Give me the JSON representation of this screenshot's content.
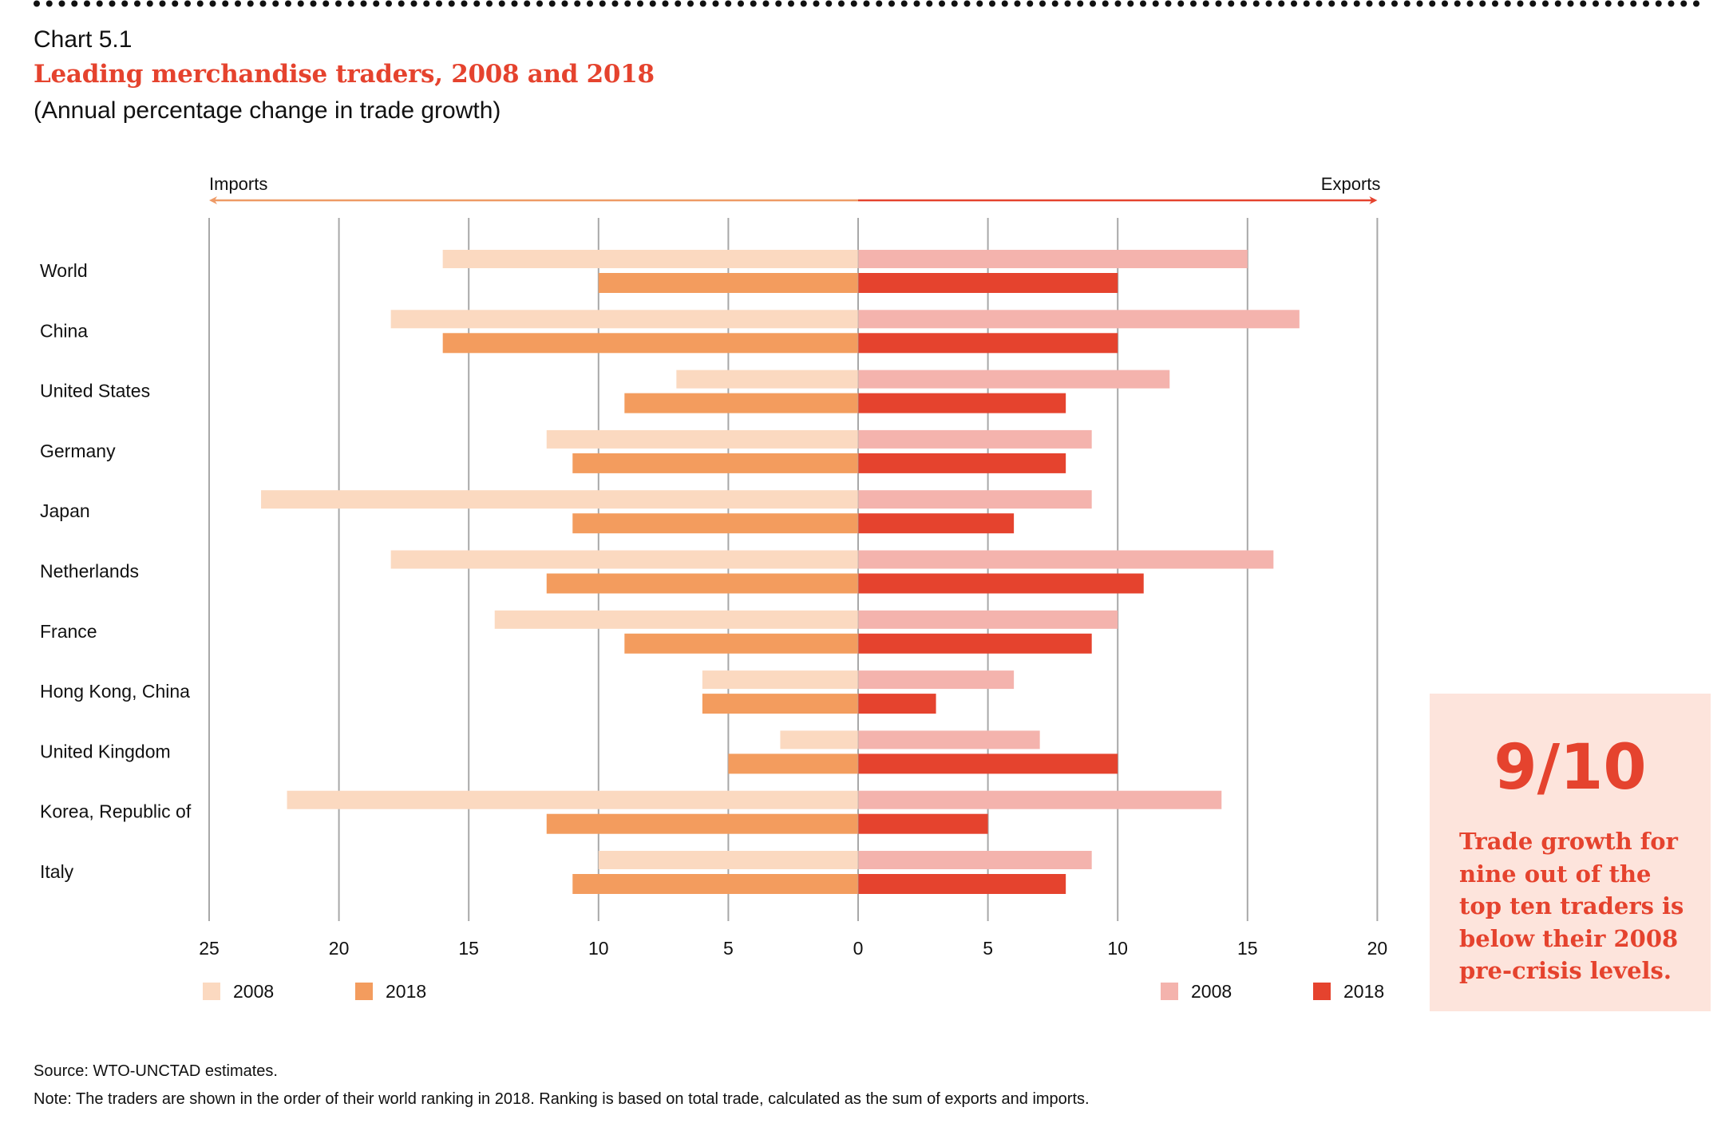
{
  "header": {
    "chart_label": "Chart 5.1",
    "title": "Leading merchandise traders, 2008 and 2018",
    "subtitle": "(Annual percentage change in trade growth)"
  },
  "colors": {
    "accent": "#e5432e",
    "imports_2008": "#fbd9c0",
    "imports_2018": "#f39c5e",
    "exports_2008": "#f4b3ad",
    "exports_2018": "#e5432e",
    "imports_arrow": "#ee9a66",
    "exports_arrow": "#e5432e",
    "gridline": "#a8a8a8",
    "callout_bg": "#fde4dc"
  },
  "chart_data": {
    "type": "bar",
    "orientation": "horizontal-diverging",
    "title": "Leading merchandise traders, 2008 and 2018",
    "subtitle": "(Annual percentage change in trade growth)",
    "left_direction_label": "Imports",
    "right_direction_label": "Exports",
    "categories": [
      "World",
      "China",
      "United States",
      "Germany",
      "Japan",
      "Netherlands",
      "France",
      "Hong Kong, China",
      "United Kingdom",
      "Korea, Republic of",
      "Italy"
    ],
    "series": [
      {
        "name": "Imports 2008",
        "side": "left",
        "legend": "2008",
        "values": [
          16,
          18,
          7,
          12,
          23,
          18,
          14,
          6,
          3,
          22,
          10
        ]
      },
      {
        "name": "Imports 2018",
        "side": "left",
        "legend": "2018",
        "values": [
          10,
          16,
          9,
          11,
          11,
          12,
          9,
          6,
          5,
          12,
          11
        ]
      },
      {
        "name": "Exports 2008",
        "side": "right",
        "legend": "2008",
        "values": [
          15,
          17,
          12,
          9,
          9,
          16,
          10,
          6,
          7,
          14,
          9
        ]
      },
      {
        "name": "Exports 2018",
        "side": "right",
        "legend": "2018",
        "values": [
          10,
          10,
          8,
          8,
          6,
          11,
          9,
          3,
          10,
          5,
          8
        ]
      }
    ],
    "xlim_left": [
      25,
      0
    ],
    "xlim_right": [
      0,
      20
    ],
    "left_ticks": [
      "25",
      "20",
      "15",
      "10",
      "5",
      "0"
    ],
    "right_ticks": [
      "5",
      "10",
      "15",
      "20"
    ],
    "grid": true,
    "legend": [
      {
        "label": "2008",
        "series": "Imports 2008",
        "placement": "bottom-left"
      },
      {
        "label": "2018",
        "series": "Imports 2018",
        "placement": "bottom-left"
      },
      {
        "label": "2008",
        "series": "Exports 2008",
        "placement": "bottom-right"
      },
      {
        "label": "2018",
        "series": "Exports 2018",
        "placement": "bottom-right"
      }
    ]
  },
  "callout": {
    "big_number": "9/10",
    "text": "Trade growth for\nnine out of the\ntop ten traders is\nbelow their 2008\npre-crisis levels."
  },
  "footer": {
    "source": "Source: WTO-UNCTAD estimates.",
    "note": "Note: The traders are shown in the order of their world ranking in 2018. Ranking is based on total trade, calculated as the sum of exports and imports."
  }
}
